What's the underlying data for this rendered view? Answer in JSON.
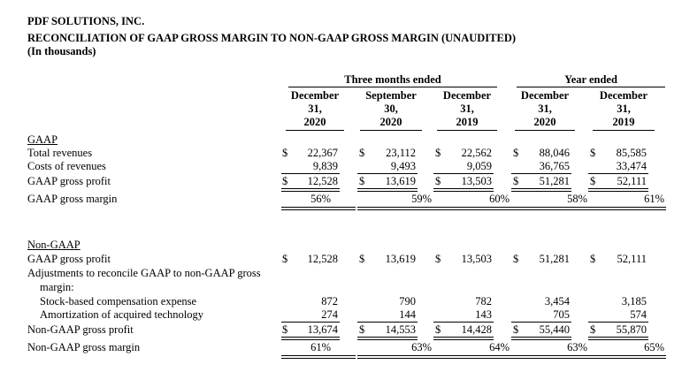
{
  "header": {
    "company": "PDF SOLUTIONS, INC.",
    "title": "RECONCILIATION OF GAAP GROSS MARGIN TO NON-GAAP GROSS MARGIN (UNAUDITED)",
    "units": "(In thousands)"
  },
  "period_groups": {
    "three_months": "Three months ended",
    "year": "Year ended"
  },
  "columns": [
    {
      "l1": "December",
      "l2": "31,",
      "l3": "2020"
    },
    {
      "l1": "September",
      "l2": "30,",
      "l3": "2020"
    },
    {
      "l1": "December",
      "l2": "31,",
      "l3": "2019"
    },
    {
      "l1": "December",
      "l2": "31,",
      "l3": "2020"
    },
    {
      "l1": "December",
      "l2": "31,",
      "l3": "2019"
    }
  ],
  "currency_symbol": "$",
  "gaap": {
    "heading": "GAAP",
    "rows": [
      {
        "label": "Total revenues",
        "values": [
          "22,367",
          "23,112",
          "22,562",
          "88,046",
          "85,585"
        ]
      },
      {
        "label": "Costs of revenues",
        "values": [
          "9,839",
          "9,493",
          "9,059",
          "36,765",
          "33,474"
        ]
      },
      {
        "label": "GAAP gross profit",
        "values": [
          "12,528",
          "13,619",
          "13,503",
          "51,281",
          "52,111"
        ]
      },
      {
        "label": "GAAP gross margin",
        "values": [
          "56%",
          "59%",
          "60%",
          "58%",
          "61%"
        ]
      }
    ]
  },
  "nongaap": {
    "heading": "Non-GAAP",
    "rows": [
      {
        "label": "GAAP gross profit",
        "values": [
          "12,528",
          "13,619",
          "13,503",
          "51,281",
          "52,111"
        ]
      },
      {
        "label": "Adjustments to reconcile GAAP to non-GAAP gross",
        "values": []
      },
      {
        "label": "margin:",
        "values": []
      },
      {
        "label": "Stock-based compensation expense",
        "values": [
          "872",
          "790",
          "782",
          "3,454",
          "3,185"
        ]
      },
      {
        "label": "Amortization of acquired technology",
        "values": [
          "274",
          "144",
          "143",
          "705",
          "574"
        ]
      },
      {
        "label": "Non-GAAP gross profit",
        "values": [
          "13,674",
          "14,553",
          "14,428",
          "55,440",
          "55,870"
        ]
      },
      {
        "label": "Non-GAAP gross margin",
        "values": [
          "61%",
          "63%",
          "64%",
          "63%",
          "65%"
        ]
      }
    ]
  }
}
